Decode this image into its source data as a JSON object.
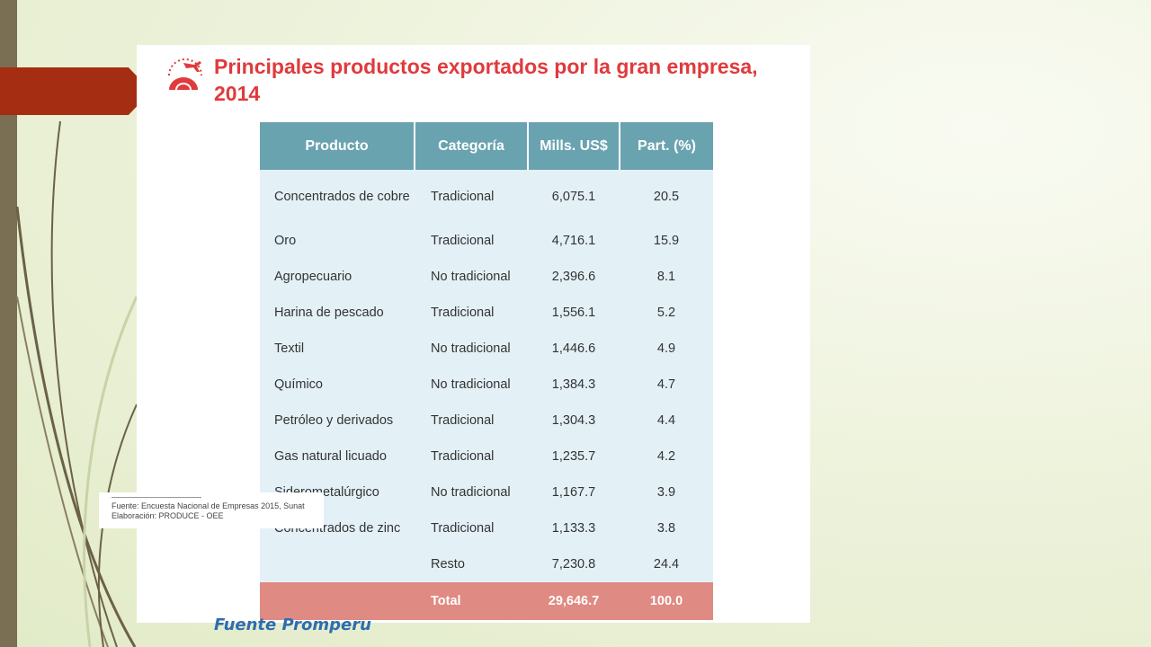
{
  "slide": {
    "title": "Principales productos exportados por la gran empresa, 2014",
    "source_note": "Fuente Promperu"
  },
  "footnote": {
    "line1": "Fuente: Encuesta Nacional de Empresas 2015, Sunat",
    "line2": "Elaboración: PRODUCE - OEE"
  },
  "table": {
    "headers": [
      "Producto",
      "Categoría",
      "Mills. US$",
      "Part. (%)"
    ],
    "rows": [
      [
        "Concentrados de cobre",
        "Tradicional",
        "6,075.1",
        "20.5"
      ],
      [
        "Oro",
        "Tradicional",
        "4,716.1",
        "15.9"
      ],
      [
        "Agropecuario",
        "No tradicional",
        "2,396.6",
        "8.1"
      ],
      [
        "Harina de pescado",
        "Tradicional",
        "1,556.1",
        "5.2"
      ],
      [
        "Textil",
        "No tradicional",
        "1,446.6",
        "4.9"
      ],
      [
        "Químico",
        "No tradicional",
        "1,384.3",
        "4.7"
      ],
      [
        "Petróleo y derivados",
        "Tradicional",
        "1,304.3",
        "4.4"
      ],
      [
        "Gas natural licuado",
        "Tradicional",
        "1,235.7",
        "4.2"
      ],
      [
        "Siderometalúrgico",
        "No tradicional",
        "1,167.7",
        "3.9"
      ],
      [
        "Concentrados de zinc",
        "Tradicional",
        "1,133.3",
        "3.8"
      ],
      [
        "",
        "Resto",
        "7,230.8",
        "24.4"
      ]
    ],
    "total": [
      "",
      "Total",
      "29,646.7",
      "100.0"
    ]
  },
  "colors": {
    "title": "#e03a3c",
    "header_bg": "#6aa3b0",
    "body_bg": "#e3f1f7",
    "total_bg": "#df8a82",
    "accent_tab": "#a52e12",
    "source_note": "#2e6db0"
  },
  "icons": {
    "title_icon": "airplane-globe-icon"
  }
}
